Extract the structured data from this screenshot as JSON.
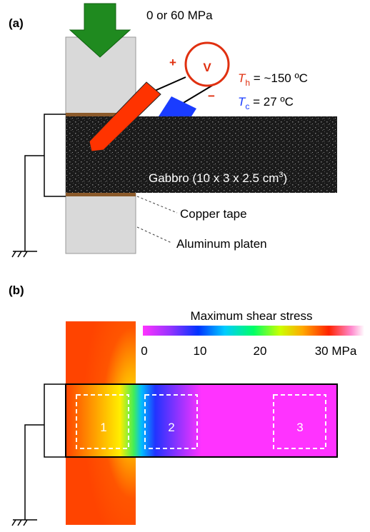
{
  "panel_a": {
    "label": "(a)",
    "load": "0 or 60 MPa",
    "plus": "+",
    "meter": "V",
    "minus": "−",
    "hot": {
      "symbol": "T",
      "sub": "h",
      "text": " = ~150 ºC"
    },
    "cold": {
      "symbol": "T",
      "sub": "c",
      "text": " = 27 ºC"
    },
    "sample": {
      "text": "Gabbro (10 x 3 x 2.5 cm",
      "sup": "3",
      "end": ")"
    },
    "copper": "Copper tape",
    "platen": "Aluminum platen"
  },
  "panel_b": {
    "label": "(b)",
    "colorbar": {
      "title": "Maximum shear stress",
      "ticks": [
        "0",
        "10",
        "20",
        "30 MPa"
      ]
    },
    "regions": [
      "1",
      "2",
      "3"
    ]
  }
}
